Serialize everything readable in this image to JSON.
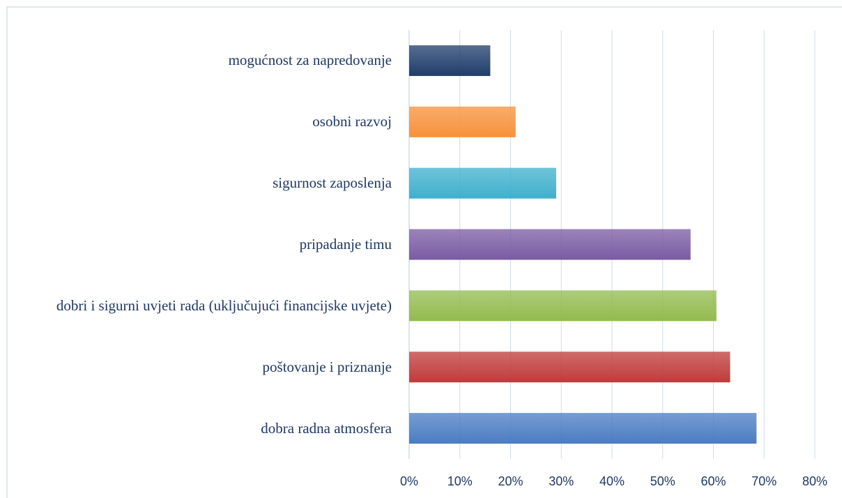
{
  "chart_data": {
    "type": "bar",
    "orientation": "horizontal",
    "categories": [
      "mogućnost za napredovanje",
      "osobni razvoj",
      "sigurnost zaposlenja",
      "pripadanje timu",
      "dobri i sigurni uvjeti rada (uključujući  financijske uvjete)",
      "poštovanje i priznanje ",
      "dobra radna atmosfera"
    ],
    "values": [
      16,
      21,
      29,
      55.5,
      60.6,
      63.3,
      68.5
    ],
    "colors": [
      "#1f3d6b",
      "#f7913a",
      "#3fb0cc",
      "#7a5ba3",
      "#92bb4e",
      "#bf3b3a",
      "#4a7cc2"
    ],
    "xlim": [
      0,
      80
    ],
    "xticks": [
      {
        "value": 0,
        "label": "0%"
      },
      {
        "value": 10,
        "label": "10%"
      },
      {
        "value": 20,
        "label": "20%"
      },
      {
        "value": 30,
        "label": "30%"
      },
      {
        "value": 40,
        "label": "40%"
      },
      {
        "value": 50,
        "label": "50%"
      },
      {
        "value": 60,
        "label": "60%"
      },
      {
        "value": 70,
        "label": "70%"
      },
      {
        "value": 80,
        "label": "80%"
      }
    ],
    "grid": true
  }
}
